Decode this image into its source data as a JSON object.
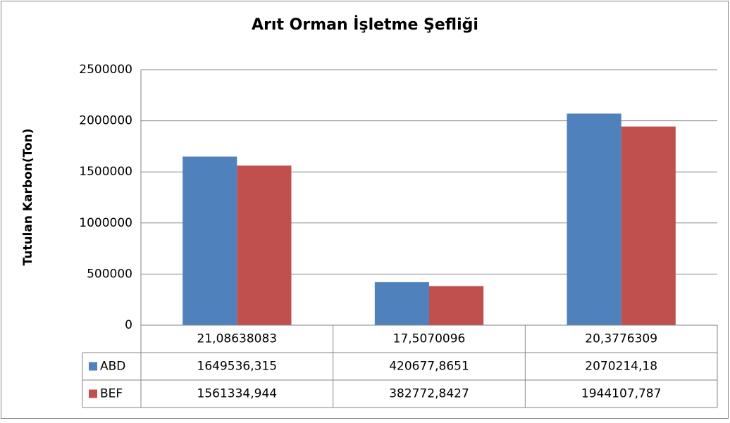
{
  "chart_data": {
    "type": "bar",
    "title": "Arıt Orman İşletme Şefliği",
    "y_label": "Tutulan Karbon(Ton)",
    "categories": [
      "21,08638083",
      "17,5070096",
      "20,3776309"
    ],
    "series": [
      {
        "name": "ABD",
        "color": "#4f81bd",
        "values": [
          1649536.315,
          420677.8651,
          2070214.18
        ],
        "value_labels": [
          "1649536,315",
          "420677,8651",
          "2070214,18"
        ]
      },
      {
        "name": "BEF",
        "color": "#c0504d",
        "values": [
          1561334.944,
          382772.8427,
          1944107.787
        ],
        "value_labels": [
          "1561334,944",
          "382772,8427",
          "1944107,787"
        ]
      }
    ],
    "ylim": [
      0,
      2500000
    ],
    "yticks": [
      0,
      500000,
      1000000,
      1500000,
      2000000,
      2500000
    ],
    "grid": true
  }
}
